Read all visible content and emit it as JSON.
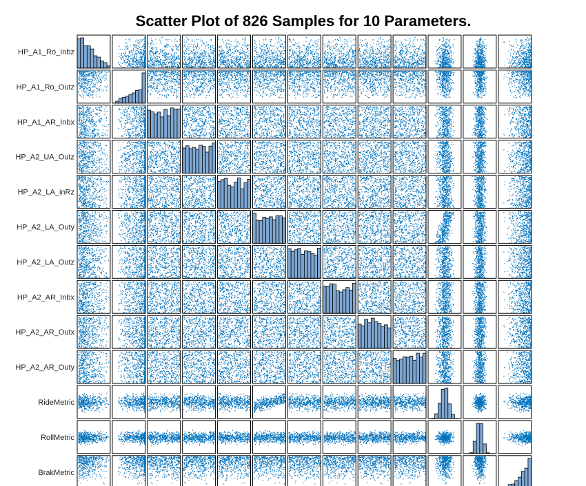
{
  "chart_data": {
    "type": "scatter",
    "title": "Scatter Plot of 826 Samples for 10 Parameters.",
    "sample_count": 826,
    "marker_color": "#0072BD",
    "hist_fill": "#7FA8D4",
    "variables": [
      {
        "name": "HP_A1_Ro_Inbz",
        "range": [
          0.1,
          0.3
        ],
        "ticks": [
          "0.2"
        ],
        "dist": "decreasing"
      },
      {
        "name": "HP_A1_Ro_Outz",
        "range": [
          0.13,
          0.28
        ],
        "ticks": [
          "0.15",
          "0.2"
        ],
        "dist": "increasing"
      },
      {
        "name": "HP_A1_AR_Inbx",
        "range": [
          -0.4,
          -0.2
        ],
        "ticks": [
          "-0.3"
        ],
        "dist": "uniform"
      },
      {
        "name": "HP_A2_UA_Outz",
        "range": [
          0.39,
          0.51
        ],
        "ticks": [
          "0.4",
          "0.45",
          "0.5"
        ],
        "dist": "uniform"
      },
      {
        "name": "HP_A2_LA_inRz",
        "range": [
          0.09,
          0.23
        ],
        "ticks": [
          "0.1",
          "0.2"
        ],
        "dist": "uniform"
      },
      {
        "name": "HP_A2_LA_Outy",
        "range": [
          0.6,
          0.8
        ],
        "ticks": [
          "0.7"
        ],
        "dist": "uniform"
      },
      {
        "name": "HP_A2_LA_Outz",
        "range": [
          0.08,
          0.24
        ],
        "ticks": [
          "0.1",
          "0.2"
        ],
        "dist": "uniform"
      },
      {
        "name": "HP_A2_AR_Inbx",
        "range": [
          0.22,
          0.36
        ],
        "ticks": [
          "0.25",
          "0.3",
          "0.35"
        ],
        "dist": "uniform"
      },
      {
        "name": "HP_A2_AR_Outx",
        "range": [
          0.0,
          0.1
        ],
        "ticks": [
          "0",
          "0.05",
          "0.1"
        ],
        "dist": "uniform"
      },
      {
        "name": "HP_A2_AR_Outy",
        "range": [
          0.5,
          0.8
        ],
        "ticks": [
          "0.6",
          "0.8"
        ],
        "dist": "uniform"
      },
      {
        "name": "RideMetric",
        "range": [
          0.75,
          1.35
        ],
        "ticks": [
          "1",
          "1.2"
        ],
        "dist": "normal"
      },
      {
        "name": "RollMetric",
        "range": [
          0.05,
          0.25
        ],
        "ticks": [
          "0.1",
          "0.2"
        ],
        "dist": "normal"
      },
      {
        "name": "BrakMetric",
        "range": [
          27.2,
          27.6
        ],
        "ticks": [
          "27.4",
          "27.6"
        ],
        "dist": "left-skewed"
      }
    ],
    "diagonal": "histogram",
    "grid": false,
    "legend": "none"
  }
}
